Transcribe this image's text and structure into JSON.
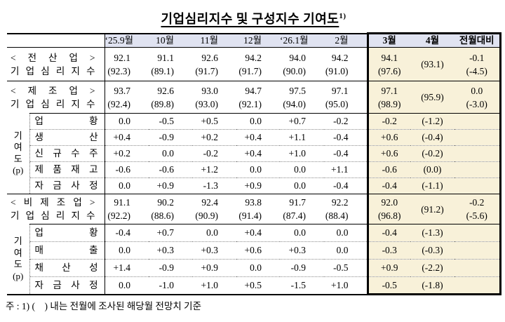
{
  "title": {
    "text": "기업심리지수 및 구성지수 기여도",
    "superscript": "1)"
  },
  "footnote": "주 : 1) (    ) 내는 전월에 조사된 해당월 전망치 기준",
  "colors": {
    "header_bg": "#e0e3f1",
    "highlight_bg": "#f8f1d9",
    "border": "#000000",
    "dotted_line": "#8a8a8a"
  },
  "table": {
    "columns": [
      "‘25.9월",
      "10월",
      "11월",
      "12월",
      "‘26.1월",
      "2월",
      "3월",
      "4월",
      "전월대비"
    ],
    "highlighted_columns": [
      "3월",
      "4월",
      "전월대비"
    ],
    "sections": [
      {
        "type": "index",
        "label_line1": "< 전 산 업 >",
        "label_line2": "기 업 심 리 지 수",
        "values_top": [
          "92.1",
          "91.1",
          "92.6",
          "94.2",
          "94.0",
          "94.2",
          "94.1",
          "",
          "-0.1"
        ],
        "values_bottom": [
          "(92.3)",
          "(89.1)",
          "(91.7)",
          "(91.7)",
          "(90.0)",
          "(91.0)",
          "(97.6)",
          "(93.1)",
          "(-4.5)"
        ]
      },
      {
        "type": "index",
        "label_line1": "< 제 조 업 >",
        "label_line2": "기 업 심 리 지 수",
        "values_top": [
          "93.7",
          "92.6",
          "93.0",
          "94.7",
          "97.5",
          "97.1",
          "97.1",
          "",
          "0.0"
        ],
        "values_bottom": [
          "(92.4)",
          "(89.8)",
          "(93.0)",
          "(92.1)",
          "(94.0)",
          "(95.0)",
          "(98.9)",
          "(95.9)",
          "(-3.0)"
        ]
      },
      {
        "type": "contrib",
        "group_label": "기 여 도 (p)",
        "rows": [
          {
            "label": "업 황",
            "values": [
              "0.0",
              "-0.5",
              "+0.5",
              "0.0",
              "+0.7",
              "-0.2",
              "-0.2",
              "(-1.2)",
              ""
            ]
          },
          {
            "label": "생 산",
            "values": [
              "+0.4",
              "-0.9",
              "+0.2",
              "+0.4",
              "+1.1",
              "-0.4",
              "+0.6",
              "(-0.4)",
              ""
            ]
          },
          {
            "label": "신 규 수 주",
            "values": [
              "+0.2",
              "0.0",
              "-0.2",
              "+0.4",
              "+1.0",
              "-0.4",
              "+0.6",
              "(-0.2)",
              ""
            ]
          },
          {
            "label": "제 품 재 고",
            "values": [
              "-0.6",
              "-0.6",
              "+1.2",
              "0.0",
              "0.0",
              "+1.1",
              "-0.6",
              "(0.0)",
              ""
            ]
          },
          {
            "label": "자 금 사 정",
            "values": [
              "0.0",
              "+0.9",
              "-1.3",
              "+0.9",
              "0.0",
              "-0.4",
              "-0.4",
              "(-1.1)",
              ""
            ]
          }
        ]
      },
      {
        "type": "index",
        "label_line1": "< 비 제 조 업 >",
        "label_line2": "기 업 심 리 지 수",
        "values_top": [
          "91.1",
          "90.2",
          "92.4",
          "93.8",
          "91.7",
          "92.2",
          "92.0",
          "",
          "-0.2"
        ],
        "values_bottom": [
          "(92.2)",
          "(88.6)",
          "(90.9)",
          "(91.4)",
          "(87.4)",
          "(88.4)",
          "(96.8)",
          "(91.2)",
          "(-5.6)"
        ]
      },
      {
        "type": "contrib",
        "group_label": "기 여 도 (p)",
        "rows": [
          {
            "label": "업 황",
            "values": [
              "-0.4",
              "+0.7",
              "0.0",
              "+0.4",
              "0.0",
              "0.0",
              "-0.4",
              "(-1.3)",
              ""
            ]
          },
          {
            "label": "매 출",
            "values": [
              "0.0",
              "+0.3",
              "+0.3",
              "+0.6",
              "+0.3",
              "0.0",
              "-0.3",
              "(-0.3)",
              ""
            ]
          },
          {
            "label": "채 산 성",
            "values": [
              "+1.4",
              "-0.9",
              "+0.9",
              "0.0",
              "-0.9",
              "-0.5",
              "+0.9",
              "(-2.2)",
              ""
            ]
          },
          {
            "label": "자 금 사 정",
            "values": [
              "0.0",
              "-1.0",
              "+1.0",
              "+0.5",
              "-1.5",
              "+1.0",
              "-0.5",
              "(-1.8)",
              ""
            ]
          }
        ]
      }
    ]
  }
}
